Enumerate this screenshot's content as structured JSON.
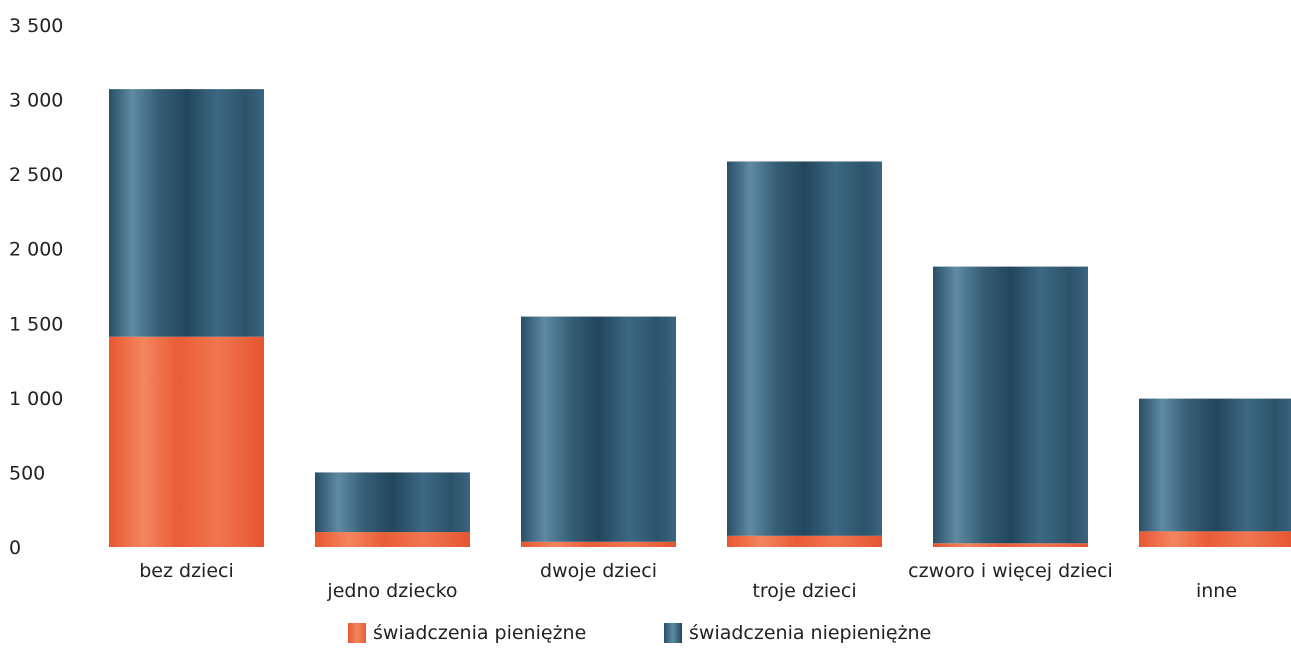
{
  "chart_data": {
    "type": "bar",
    "stacked": true,
    "categories": [
      "bez dzieci",
      "jedno dziecko",
      "dwoje dzieci",
      "troje dzieci",
      "czworo i więcej dzieci",
      "inne"
    ],
    "series": [
      {
        "name": "świadczenia pieniężne",
        "color": "#ea5f3a",
        "values": [
          1410,
          100,
          35,
          75,
          25,
          105
        ]
      },
      {
        "name": "świadczenia niepieniężne",
        "color": "#2f5f78",
        "values": [
          1660,
          400,
          1510,
          2510,
          1855,
          890
        ]
      }
    ],
    "ylim": [
      0,
      3500
    ],
    "yticks": [
      "0",
      "500",
      "1 000",
      "1 500",
      "2 000",
      "2 500",
      "3 000",
      "3 500"
    ],
    "ytick_values": [
      0,
      500,
      1000,
      1500,
      2000,
      2500,
      3000,
      3500
    ],
    "grid": false,
    "legend_position": "bottom",
    "title": "",
    "xlabel": "",
    "ylabel": ""
  }
}
